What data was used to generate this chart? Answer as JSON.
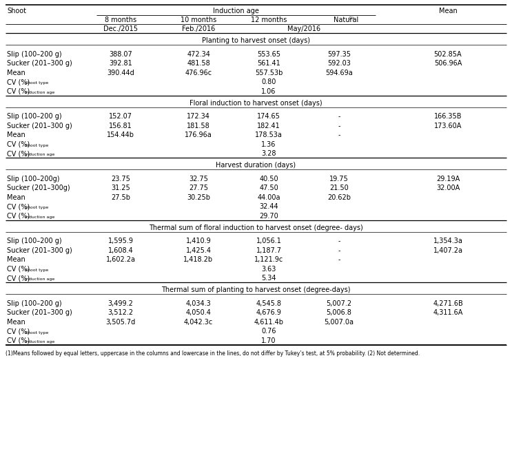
{
  "sections": [
    {
      "title": "Planting to harvest onset (days)",
      "rows": [
        {
          "type": "data",
          "label": "Slip (100–200 g)",
          "vals": [
            "388.07",
            "472.34",
            "553.65",
            "597.35",
            "502.85A"
          ]
        },
        {
          "type": "data",
          "label": "Sucker (201–300 g)",
          "vals": [
            "392.81",
            "481.58",
            "561.41",
            "592.03",
            "506.96A"
          ]
        },
        {
          "type": "mean",
          "label": "Mean",
          "vals": [
            "390.44d",
            "476.96c",
            "557.53b",
            "594.69a",
            ""
          ]
        },
        {
          "type": "cv",
          "label": "Shoot type",
          "vals": [
            "",
            "",
            "0.80",
            "",
            ""
          ]
        },
        {
          "type": "cv",
          "label": "Induction age",
          "vals": [
            "",
            "",
            "1.06",
            "",
            ""
          ]
        }
      ]
    },
    {
      "title": "Floral induction to harvest onset (days)",
      "rows": [
        {
          "type": "data",
          "label": "Slip (100–200 g)",
          "vals": [
            "152.07",
            "172.34",
            "174.65",
            "-",
            "166.35B"
          ]
        },
        {
          "type": "data",
          "label": "Sucker (201–300 g)",
          "vals": [
            "156.81",
            "181.58",
            "182.41",
            "-",
            "173.60A"
          ]
        },
        {
          "type": "mean",
          "label": "Mean",
          "vals": [
            "154.44b",
            "176.96a",
            "178.53a",
            "-",
            ""
          ]
        },
        {
          "type": "cv",
          "label": "Shoot type",
          "vals": [
            "",
            "",
            "1.36",
            "",
            ""
          ]
        },
        {
          "type": "cv",
          "label": "Induction age",
          "vals": [
            "",
            "",
            "3.28",
            "",
            ""
          ]
        }
      ]
    },
    {
      "title": "Harvest duration (days)",
      "rows": [
        {
          "type": "data",
          "label": "Slip (100–200g)",
          "vals": [
            "23.75",
            "32.75",
            "40.50",
            "19.75",
            "29.19A"
          ]
        },
        {
          "type": "data",
          "label": "Sucker (201–300g)",
          "vals": [
            "31.25",
            "27.75",
            "47.50",
            "21.50",
            "32.00A"
          ]
        },
        {
          "type": "mean",
          "label": "Mean",
          "vals": [
            "27.5b",
            "30.25b",
            "44.00a",
            "20.62b",
            ""
          ]
        },
        {
          "type": "cv",
          "label": "Shoot type",
          "vals": [
            "",
            "",
            "32.44",
            "",
            ""
          ]
        },
        {
          "type": "cv",
          "label": "Induction age",
          "vals": [
            "",
            "",
            "29.70",
            "",
            ""
          ]
        }
      ]
    },
    {
      "title": "Thermal sum of floral induction to harvest onset (degree- days)",
      "rows": [
        {
          "type": "data",
          "label": "Slip (100–200 g)",
          "vals": [
            "1,595.9",
            "1,410.9",
            "1,056.1",
            "-",
            "1,354.3a"
          ]
        },
        {
          "type": "data",
          "label": "Sucker (201–300 g)",
          "vals": [
            "1,608.4",
            "1,425.4",
            "1,187.7",
            "-",
            "1,407.2a"
          ]
        },
        {
          "type": "mean",
          "label": "Mean",
          "vals": [
            "1,602.2a",
            "1,418.2b",
            "1,121.9c",
            "-",
            ""
          ]
        },
        {
          "type": "cv",
          "label": "Shoot type",
          "vals": [
            "",
            "",
            "3.63",
            "",
            ""
          ]
        },
        {
          "type": "cv",
          "label": "Induction age",
          "vals": [
            "",
            "",
            "5.34",
            "",
            ""
          ]
        }
      ]
    },
    {
      "title": "Thermal sum of planting to harvest onset (degree-days)",
      "rows": [
        {
          "type": "data",
          "label": "Slip (100–200 g)",
          "vals": [
            "3,499.2",
            "4,034.3",
            "4,545.8",
            "5,007.2",
            "4,271.6B"
          ]
        },
        {
          "type": "data",
          "label": "Sucker (201–300 g)",
          "vals": [
            "3,512.2",
            "4,050.4",
            "4,676.9",
            "5,006.8",
            "4,311.6A"
          ]
        },
        {
          "type": "mean",
          "label": "Mean",
          "vals": [
            "3,505.7d",
            "4,042.3c",
            "4,611.4b",
            "5,007.0a",
            ""
          ]
        },
        {
          "type": "cv",
          "label": "Shoot type",
          "vals": [
            "",
            "",
            "0.76",
            "",
            ""
          ]
        },
        {
          "type": "cv",
          "label": "Induction age",
          "vals": [
            "",
            "",
            "1.70",
            "",
            ""
          ]
        }
      ]
    }
  ],
  "footnote": "(1)Means followed by equal letters, uppercase in the columns and lowercase in the lines, do not differ by Tukey’s test, at 5% probability. (2) Not determined."
}
